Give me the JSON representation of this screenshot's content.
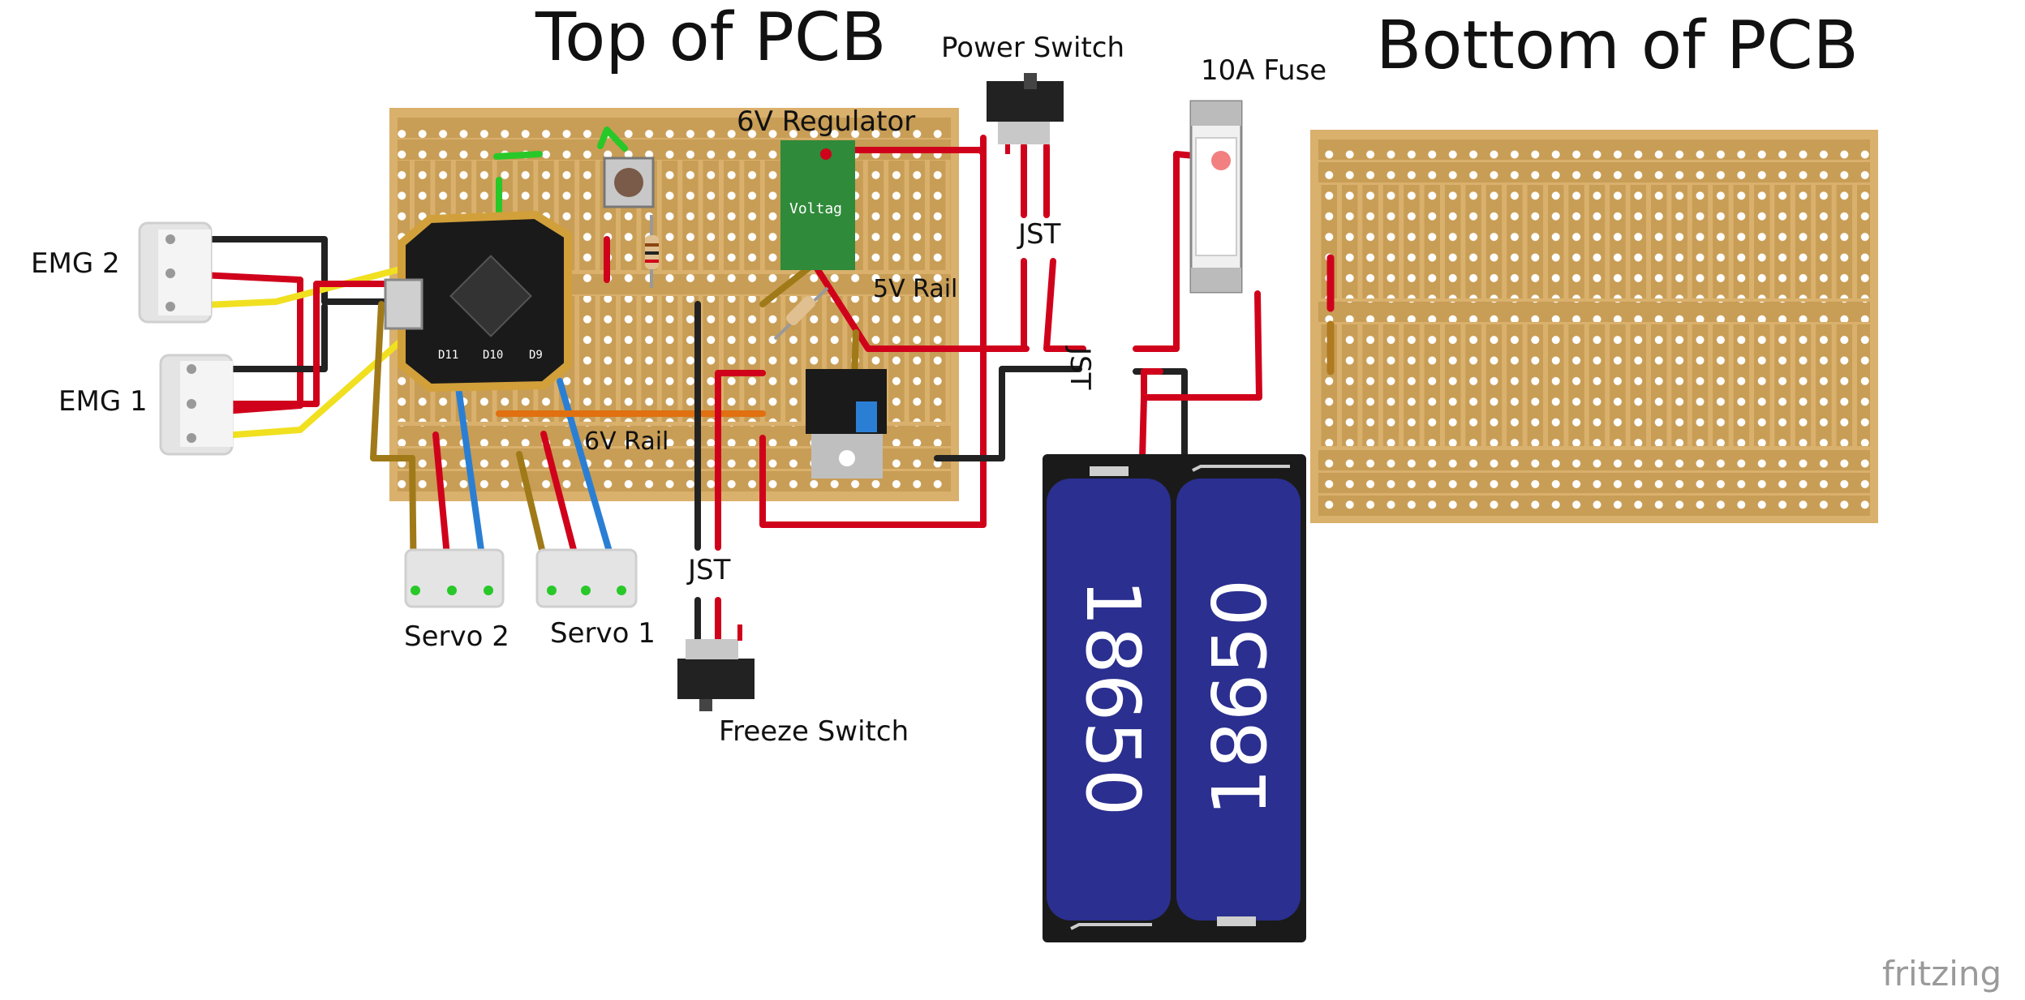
{
  "titles": {
    "top_pcb": "Top of PCB",
    "bottom_pcb": "Bottom of PCB"
  },
  "labels": {
    "power_switch": "Power Switch",
    "fuse": "10A Fuse",
    "regulator_6v": "6V Regulator",
    "regulator_chip": "Voltag",
    "rail_5v": "5V Rail",
    "rail_6v": "6V Rail",
    "jst_top": "JST",
    "jst_side": "JST",
    "jst_bottom": "JST",
    "emg2": "EMG 2",
    "emg1": "EMG 1",
    "servo2": "Servo 2",
    "servo1": "Servo 1",
    "freeze_switch": "Freeze Switch",
    "battery_left": "18650",
    "battery_right": "18650",
    "mcu_pin_a": "D11",
    "mcu_pin_b": "D10",
    "mcu_pin_c": "D9"
  },
  "watermark": "fritzing",
  "colors": {
    "board": "#d9b06c",
    "wire_red": "#d0021b",
    "wire_black": "#222222",
    "wire_yellow": "#f0e020",
    "wire_blue": "#2a7fd4",
    "wire_brown": "#a07a18",
    "wire_orange": "#e07010",
    "wire_green": "#28c828",
    "battery_blue": "#2b2f8f"
  }
}
